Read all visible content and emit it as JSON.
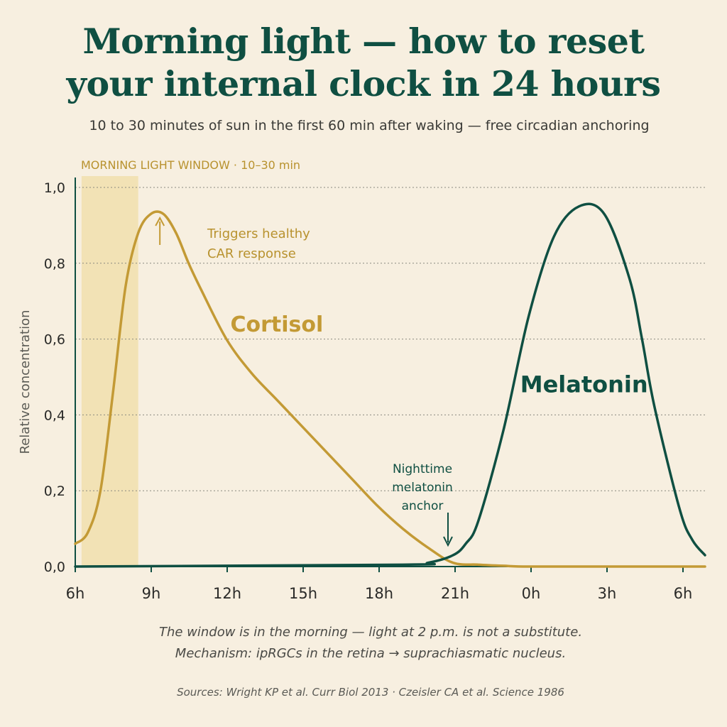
{
  "title_line1": "Morning light — how to reset",
  "title_line2": "your internal clock in 24 hours",
  "subtitle": "10 to 30 minutes of sun in the first 60 min after waking — free circadian anchoring",
  "footer": {
    "caption1": "The window is in the morning — light at 2 p.m. is not a substitute.",
    "caption2": "Mechanism: ipRGCs in the retina → suprachiasmatic nucleus.",
    "sources": "Sources: Wright KP et al. Curr Biol 2013 · Czeisler CA et al. Science 1986"
  },
  "colors": {
    "cortisol": "#c39a35",
    "melatonin": "#0f4f42",
    "window": "#f1dfad",
    "axis": "#0f4f42",
    "grid": "#8a8a80"
  },
  "chart_data": {
    "type": "line",
    "ylabel": "Relative concentration",
    "xlabel": "",
    "x_unit": "hours (clock time, 6h to 6h next day)",
    "ylim": [
      0,
      1
    ],
    "xlim": [
      6,
      31
    ],
    "y_ticks": [
      "0,0",
      "0,2",
      "0,4",
      "0,6",
      "0,8",
      "1,0"
    ],
    "x_ticks": [
      "6h",
      "9h",
      "12h",
      "15h",
      "18h",
      "21h",
      "0h",
      "3h",
      "6h"
    ],
    "grid": "horizontal dotted",
    "highlight_band": {
      "label": "MORNING LIGHT WINDOW · 10–30 min",
      "x_start": 6.25,
      "x_end": 8.5
    },
    "series": [
      {
        "name": "Cortisol",
        "x": [
          6,
          6.5,
          7,
          7.5,
          8,
          8.5,
          9,
          9.5,
          10,
          10.5,
          11,
          12,
          13,
          14,
          15,
          16,
          17,
          18,
          19,
          20,
          21,
          22,
          23,
          24,
          27,
          31
        ],
        "y": [
          0.06,
          0.09,
          0.2,
          0.46,
          0.74,
          0.88,
          0.93,
          0.93,
          0.88,
          0.8,
          0.73,
          0.6,
          0.51,
          0.44,
          0.37,
          0.3,
          0.23,
          0.16,
          0.1,
          0.05,
          0.01,
          0.005,
          0.002,
          0.0,
          0.0,
          0.0
        ]
      },
      {
        "name": "Melatonin",
        "x": [
          6,
          19,
          20,
          21,
          21.5,
          22,
          23,
          24,
          25,
          26,
          27,
          28,
          28.5,
          29,
          30,
          30.5,
          31
        ],
        "y": [
          0.0,
          0.005,
          0.01,
          0.03,
          0.06,
          0.12,
          0.36,
          0.66,
          0.87,
          0.95,
          0.93,
          0.76,
          0.6,
          0.42,
          0.15,
          0.07,
          0.03
        ]
      }
    ],
    "annotations": [
      {
        "text_line1": "Triggers healthy",
        "text_line2": "CAR response",
        "x": 9.5,
        "y": 0.93,
        "series": "Cortisol"
      },
      {
        "text_line1": "Nighttime",
        "text_line2": "melatonin",
        "text_line3": "anchor",
        "x": 21,
        "y": 0.03,
        "series": "Melatonin"
      }
    ]
  }
}
